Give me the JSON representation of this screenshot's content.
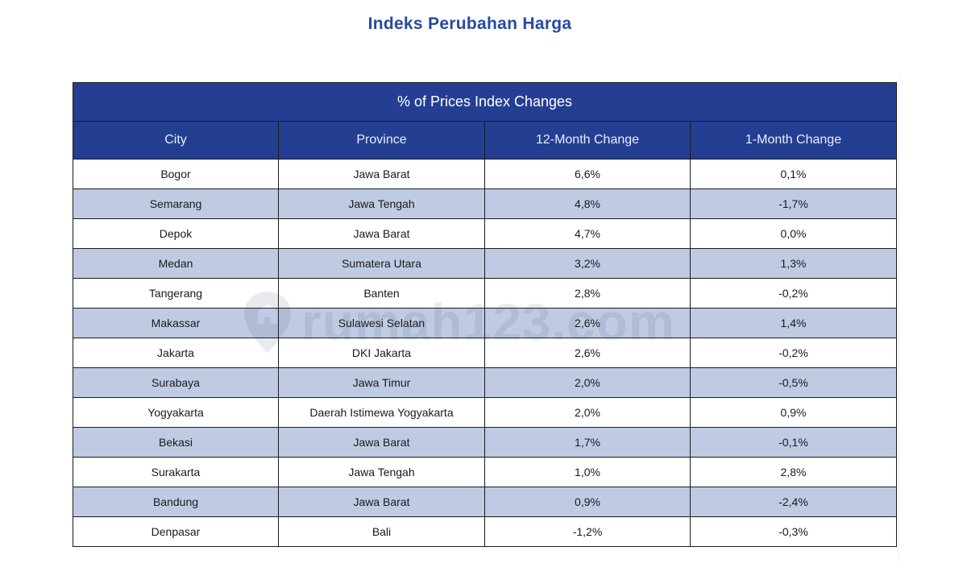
{
  "page": {
    "title": "Indeks Perubahan Harga"
  },
  "table": {
    "caption": "% of Prices Index Changes",
    "headers": [
      "City",
      "Province",
      "12-Month Change",
      "1-Month Change"
    ],
    "rows": [
      [
        "Bogor",
        "Jawa Barat",
        "6,6%",
        "0,1%"
      ],
      [
        "Semarang",
        "Jawa Tengah",
        "4,8%",
        "-1,7%"
      ],
      [
        "Depok",
        "Jawa Barat",
        "4,7%",
        "0,0%"
      ],
      [
        "Medan",
        "Sumatera Utara",
        "3,2%",
        "1,3%"
      ],
      [
        "Tangerang",
        "Banten",
        "2,8%",
        "-0,2%"
      ],
      [
        "Makassar",
        "Sulawesi Selatan",
        "2,6%",
        "1,4%"
      ],
      [
        "Jakarta",
        "DKI Jakarta",
        "2,6%",
        "-0,2%"
      ],
      [
        "Surabaya",
        "Jawa Timur",
        "2,0%",
        "-0,5%"
      ],
      [
        "Yogyakarta",
        "Daerah Istimewa Yogyakarta",
        "2,0%",
        "0,9%"
      ],
      [
        "Bekasi",
        "Jawa Barat",
        "1,7%",
        "-0,1%"
      ],
      [
        "Surakarta",
        "Jawa Tengah",
        "1,0%",
        "2,8%"
      ],
      [
        "Bandung",
        "Jawa Barat",
        "0,9%",
        "-2,4%"
      ],
      [
        "Denpasar",
        "Bali",
        "-1,2%",
        "-0,3%"
      ]
    ]
  },
  "watermark": {
    "text": "rumah123.com"
  },
  "colors": {
    "title": "#2749a0",
    "header_bg": "#243f92",
    "stripe": "#bfcae3",
    "border": "#1b1b1b"
  }
}
